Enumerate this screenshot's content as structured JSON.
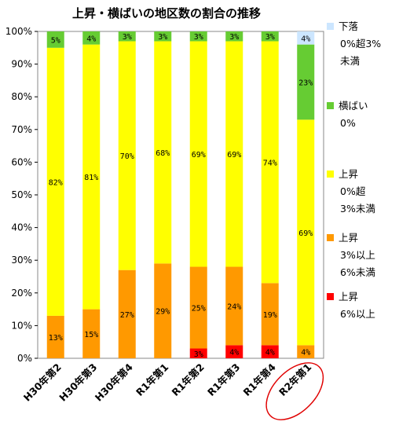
{
  "chart_data": {
    "type": "bar",
    "stacked": true,
    "title": "上昇・横ばいの地区数の割合の推移",
    "categories": [
      "H30年第2",
      "H30年第3",
      "H30年第4",
      "R1年第1",
      "R1年第2",
      "R1年第3",
      "R1年第4",
      "R2年第1"
    ],
    "highlighted_category": "R2年第1",
    "ylim": [
      0,
      100
    ],
    "yticks": [
      "0%",
      "10%",
      "20%",
      "30%",
      "40%",
      "50%",
      "60%",
      "70%",
      "80%",
      "90%",
      "100%"
    ],
    "grid": false,
    "legend_position": "right",
    "series": [
      {
        "name": "上昇 6%以上",
        "legend_lines": [
          "上昇",
          "6%以上"
        ],
        "color": "#ff0000",
        "values": [
          0,
          0,
          0,
          0,
          3,
          4,
          4,
          0
        ],
        "labels": [
          "",
          "",
          "",
          "",
          "3%",
          "4%",
          "4%",
          ""
        ]
      },
      {
        "name": "上昇 3%以上 6%未満",
        "legend_lines": [
          "上昇",
          "3%以上",
          "6%未満"
        ],
        "color": "#ff9900",
        "values": [
          13,
          15,
          27,
          29,
          25,
          24,
          19,
          4
        ],
        "labels": [
          "13%",
          "15%",
          "27%",
          "29%",
          "25%",
          "24%",
          "19%",
          "4%"
        ]
      },
      {
        "name": "上昇 0%超 3%未満",
        "legend_lines": [
          "上昇",
          "0%超",
          "3%未満"
        ],
        "color": "#ffff00",
        "values": [
          82,
          81,
          70,
          68,
          69,
          69,
          74,
          69
        ],
        "labels": [
          "82%",
          "81%",
          "70%",
          "68%",
          "69%",
          "69%",
          "74%",
          "69%"
        ]
      },
      {
        "name": "横ばい 0%",
        "legend_lines": [
          "横ばい",
          "0%"
        ],
        "color": "#66cc33",
        "values": [
          5,
          4,
          3,
          3,
          3,
          3,
          3,
          23
        ],
        "labels": [
          "5%",
          "4%",
          "3%",
          "3%",
          "3%",
          "3%",
          "3%",
          "23%"
        ]
      },
      {
        "name": "下落 0%超3%未満",
        "legend_lines": [
          "下落",
          "0%超3%",
          "未満"
        ],
        "color": "#cce6ff",
        "values": [
          0,
          0,
          0,
          0,
          0,
          0,
          0,
          4
        ],
        "labels": [
          "",
          "",
          "",
          "",
          "",
          "",
          "",
          "4%"
        ]
      }
    ]
  }
}
